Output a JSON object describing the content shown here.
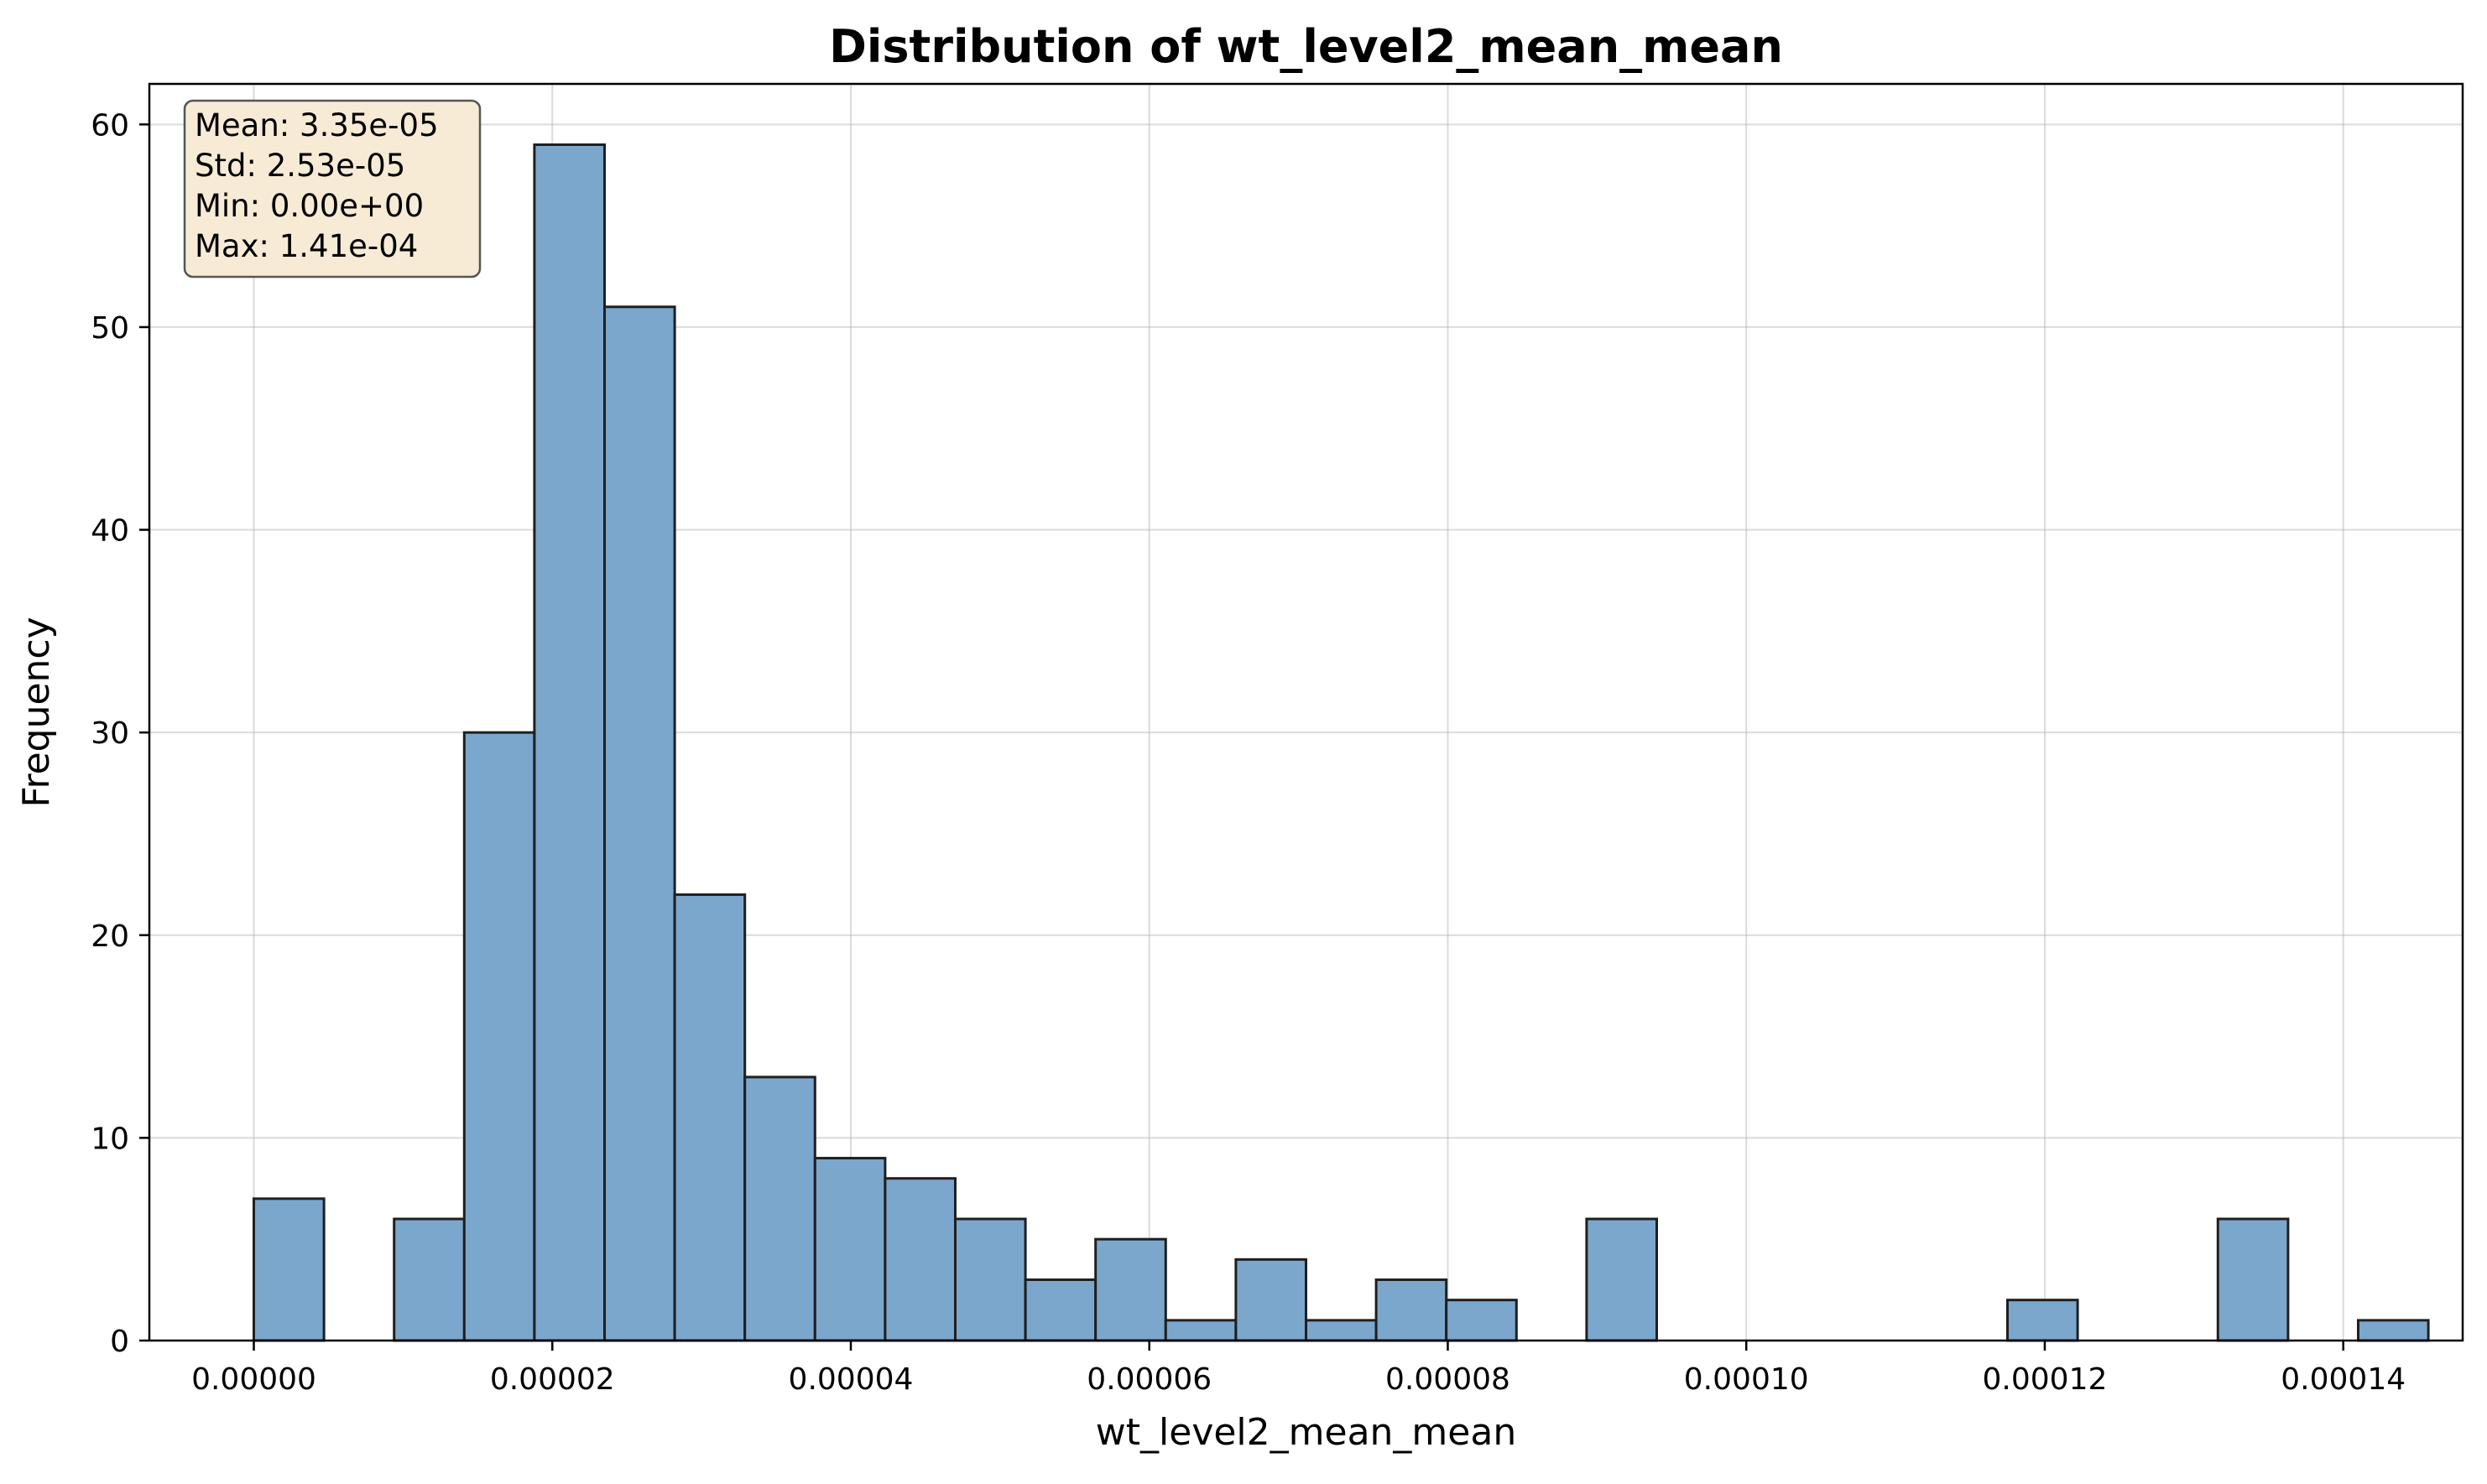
{
  "chart_data": {
    "type": "bar",
    "title": "Distribution of wt_level2_mean_mean",
    "xlabel": "wt_level2_mean_mean",
    "ylabel": "Frequency",
    "xlim": [
      -7e-06,
      0.000148
    ],
    "ylim": [
      0,
      62
    ],
    "x_ticks": [
      "0.00000",
      "0.00002",
      "0.00004",
      "0.00006",
      "0.00008",
      "0.00010",
      "0.00012",
      "0.00014"
    ],
    "x_tick_values": [
      0,
      2e-05,
      4e-05,
      6e-05,
      8e-05,
      0.0001,
      0.00012,
      0.00014
    ],
    "y_ticks": [
      "0",
      "10",
      "20",
      "30",
      "40",
      "50",
      "60"
    ],
    "y_tick_values": [
      0,
      10,
      20,
      30,
      40,
      50,
      60
    ],
    "bin_start": 0,
    "bin_width": 4.7e-06,
    "values": [
      7,
      0,
      6,
      30,
      59,
      51,
      22,
      13,
      9,
      8,
      6,
      3,
      5,
      1,
      4,
      1,
      3,
      2,
      0,
      6,
      0,
      0,
      0,
      0,
      0,
      2,
      0,
      0,
      6,
      0,
      1
    ],
    "grid": true,
    "bar_color": "#7ba7cc",
    "edge_color": "#1f1f1f",
    "stats_box": {
      "lines": [
        "Mean: 3.35e-05",
        "Std: 2.53e-05",
        "Min: 0.00e+00",
        "Max: 1.41e-04"
      ],
      "placement": "top-left",
      "background": "#f7ebd6"
    }
  }
}
